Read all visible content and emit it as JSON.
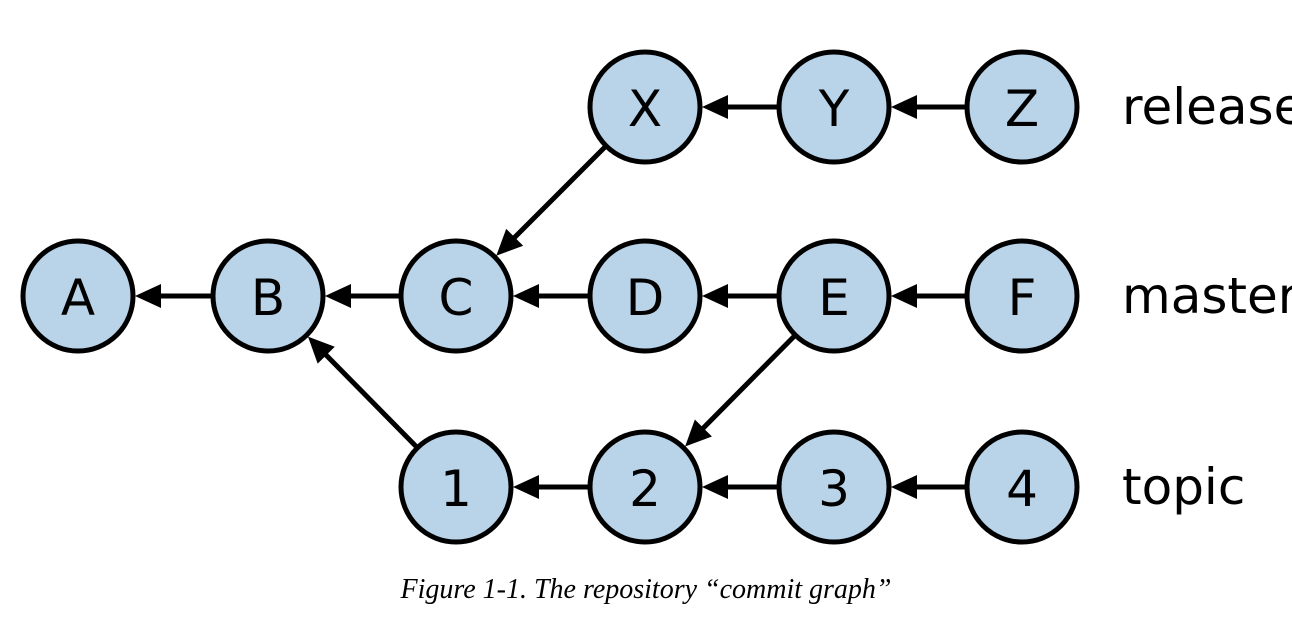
{
  "diagram": {
    "nodes": [
      {
        "id": "A",
        "label": "A"
      },
      {
        "id": "B",
        "label": "B"
      },
      {
        "id": "C",
        "label": "C"
      },
      {
        "id": "D",
        "label": "D"
      },
      {
        "id": "E",
        "label": "E"
      },
      {
        "id": "F",
        "label": "F"
      },
      {
        "id": "X",
        "label": "X"
      },
      {
        "id": "Y",
        "label": "Y"
      },
      {
        "id": "Z",
        "label": "Z"
      },
      {
        "id": "1",
        "label": "1"
      },
      {
        "id": "2",
        "label": "2"
      },
      {
        "id": "3",
        "label": "3"
      },
      {
        "id": "4",
        "label": "4"
      }
    ],
    "edges": [
      {
        "from": "B",
        "to": "A"
      },
      {
        "from": "C",
        "to": "B"
      },
      {
        "from": "D",
        "to": "C"
      },
      {
        "from": "E",
        "to": "D"
      },
      {
        "from": "F",
        "to": "E"
      },
      {
        "from": "X",
        "to": "C"
      },
      {
        "from": "Y",
        "to": "X"
      },
      {
        "from": "Z",
        "to": "Y"
      },
      {
        "from": "1",
        "to": "B"
      },
      {
        "from": "2",
        "to": "1"
      },
      {
        "from": "3",
        "to": "2"
      },
      {
        "from": "4",
        "to": "3"
      },
      {
        "from": "E",
        "to": "2"
      }
    ],
    "branches": [
      {
        "id": "release",
        "label": "release"
      },
      {
        "id": "master",
        "label": "master"
      },
      {
        "id": "topic",
        "label": "topic"
      }
    ],
    "colors": {
      "node_fill": "#b9d3e9",
      "stroke": "#000000"
    }
  },
  "caption": {
    "figure_number": "Figure 1-1.",
    "text": "The repository “commit graph”"
  }
}
